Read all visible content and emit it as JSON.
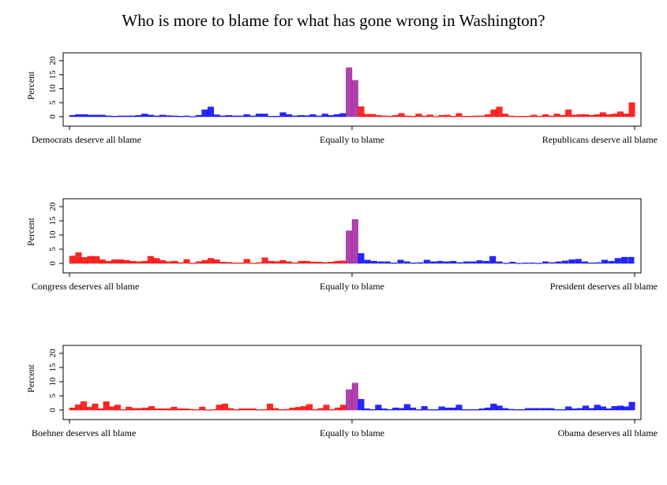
{
  "title": "Who is more to blame for what has gone wrong in Washington?",
  "chart_data": [
    {
      "type": "bar",
      "ylabel": "Percent",
      "yticks": [
        0,
        5,
        10,
        15,
        20
      ],
      "ylim": [
        0,
        20
      ],
      "x_labels": {
        "left": "Democrats deserve all blame",
        "center": "Equally to blame",
        "right": "Republicans deserve all blame"
      },
      "colors": {
        "left": "#0000ff",
        "center": "#a020a0",
        "right": "#ff0000"
      },
      "left_values": [
        0.5,
        0.8,
        0.8,
        0.6,
        0.6,
        0.6,
        0.3,
        0.2,
        0.3,
        0.3,
        0.3,
        0.5,
        1,
        0.6,
        0.3,
        0.6,
        0.4,
        0.3,
        0.2,
        0.3,
        0.1,
        0.5,
        2.5,
        3.5,
        0.7,
        0.3,
        0.5,
        0.3,
        0.3,
        0.8,
        0.3,
        1,
        1,
        0.2,
        0.2,
        1.5,
        0.8,
        0.3,
        0.5,
        0.4,
        0.8,
        0.3,
        1,
        0.5,
        0.8,
        1.2
      ],
      "center_values": [
        17.5,
        13
      ],
      "right_values": [
        3.6,
        0.9,
        0.9,
        0.5,
        0.3,
        0.2,
        0.5,
        1.2,
        0.3,
        0.2,
        1,
        0.3,
        0.7,
        0.1,
        0.5,
        0.6,
        0.2,
        1.2,
        0.2,
        0.2,
        0.3,
        0.3,
        0.8,
        2.5,
        3.5,
        1,
        0.3,
        0.2,
        0.2,
        0.2,
        0.6,
        0.2,
        0.8,
        0.3,
        1,
        0.5,
        2.5,
        0.6,
        0.8,
        0.8,
        0.5,
        0.8,
        1.5,
        0.8,
        1,
        1.8,
        1,
        5
      ]
    },
    {
      "type": "bar",
      "ylabel": "Percent",
      "yticks": [
        0,
        5,
        10,
        15,
        20
      ],
      "ylim": [
        0,
        20
      ],
      "x_labels": {
        "left": "Congress deserves all blame",
        "center": "Equally to blame",
        "right": "President deserves all blame"
      },
      "colors": {
        "left": "#ff0000",
        "center": "#a020a0",
        "right": "#0000ff"
      },
      "left_values": [
        2.6,
        3.8,
        2.1,
        2.5,
        2.5,
        1.3,
        0.8,
        1.3,
        1.3,
        1.1,
        0.8,
        0.6,
        0.8,
        2.5,
        1.8,
        1.1,
        0.6,
        0.8,
        0.3,
        1.4,
        0.1,
        0.6,
        1.1,
        1.8,
        1.3,
        0.5,
        0.4,
        0.2,
        0.2,
        1.5,
        0.1,
        0.3,
        2,
        0.8,
        0.6,
        1.1,
        0.6,
        0.2,
        0.8,
        0.8,
        0.5,
        0.5,
        0.3,
        0.5,
        0.8,
        0.9
      ],
      "center_values": [
        11.5,
        15.5
      ],
      "right_values": [
        3.5,
        1.2,
        0.8,
        0.6,
        0.6,
        0.2,
        1.2,
        0.6,
        0.2,
        0.3,
        1.2,
        0.6,
        0.8,
        0.6,
        0.8,
        0.3,
        0.6,
        0.6,
        1,
        0.8,
        2.5,
        0.6,
        0.1,
        0.5,
        0.1,
        0.2,
        0.2,
        0.1,
        0.6,
        0.3,
        0.6,
        0.9,
        1.3,
        1.5,
        0.6,
        0.2,
        0.3,
        1.2,
        0.8,
        1.8,
        2.2,
        2.2
      ]
    },
    {
      "type": "bar",
      "ylabel": "Percent",
      "yticks": [
        0,
        5,
        10,
        15,
        20
      ],
      "ylim": [
        0,
        20
      ],
      "x_labels": {
        "left": "Boehner deserves all blame",
        "center": "Equally to blame",
        "right": "Obama deserves all blame"
      },
      "colors": {
        "left": "#ff0000",
        "center": "#a020a0",
        "right": "#0000ff"
      },
      "left_values": [
        0.8,
        1.9,
        3,
        1,
        2.2,
        0.5,
        3,
        1.2,
        1.8,
        0.2,
        1.1,
        0.6,
        0.6,
        0.8,
        1.3,
        0.5,
        0.5,
        0.5,
        1.1,
        0.5,
        0.5,
        0.3,
        0.2,
        1.1,
        0.1,
        0.2,
        1.8,
        2.2,
        0.6,
        0.2,
        0.5,
        0.5,
        0.5,
        0.2,
        0.2,
        2.2,
        0.6,
        0.2,
        0.3,
        0.8,
        1,
        1.3,
        2,
        0.2,
        0.6,
        1.8,
        0.2,
        0.8,
        1.8
      ],
      "center_values": [
        7.2,
        9.5
      ],
      "right_values": [
        3.8,
        0.5,
        0.2,
        1.8,
        0.5,
        0.2,
        0.8,
        0.6,
        2,
        0.8,
        0.2,
        1.3,
        0.2,
        0.2,
        1.2,
        0.8,
        0.8,
        1.8,
        0.2,
        0.2,
        0.2,
        0.5,
        0.8,
        2.2,
        1.5,
        0.6,
        0.3,
        0.2,
        0.2,
        0.6,
        0.6,
        0.6,
        0.6,
        0.6,
        0.2,
        0.2,
        1.2,
        0.5,
        0.6,
        1.5,
        0.6,
        1.8,
        1.2,
        0.5,
        1.3,
        1.5,
        1.2,
        2.8
      ]
    }
  ]
}
